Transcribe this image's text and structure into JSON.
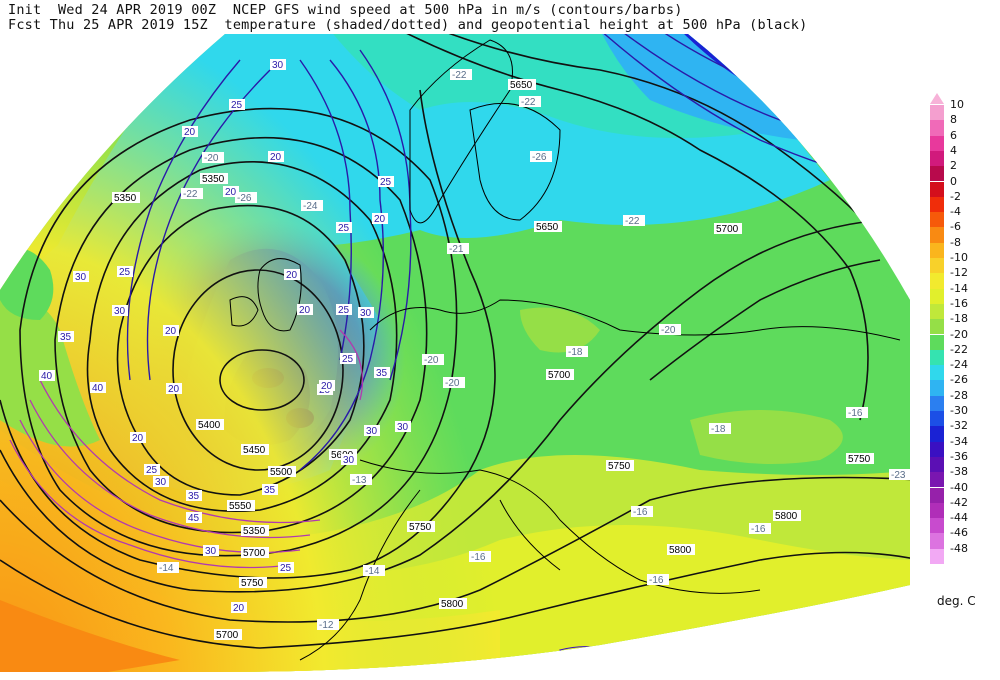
{
  "header": {
    "line1": "Init  Wed 24 APR 2019 00Z  NCEP GFS wind speed at 500 hPa in m/s (contours/barbs)",
    "line2": "Fcst Thu 25 APR 2019 15Z  temperature (shaded/dotted) and geopotential height at 500 hPa (black)"
  },
  "legend": {
    "units": "deg. C",
    "entries": [
      {
        "label": "10",
        "color": "#f49fcf"
      },
      {
        "label": "8",
        "color": "#f06ab8"
      },
      {
        "label": "6",
        "color": "#e8399c"
      },
      {
        "label": "4",
        "color": "#d11a7c"
      },
      {
        "label": "2",
        "color": "#b80a4c"
      },
      {
        "label": "0",
        "color": "#d40e1c"
      },
      {
        "label": "-2",
        "color": "#f02d0a"
      },
      {
        "label": "-4",
        "color": "#f65a0a"
      },
      {
        "label": "-6",
        "color": "#f98a12"
      },
      {
        "label": "-8",
        "color": "#fab51d"
      },
      {
        "label": "-10",
        "color": "#f8d12a"
      },
      {
        "label": "-12",
        "color": "#f2ea2e"
      },
      {
        "label": "-14",
        "color": "#e1ef2c"
      },
      {
        "label": "-16",
        "color": "#c0e83a"
      },
      {
        "label": "-18",
        "color": "#95df47"
      },
      {
        "label": "-20",
        "color": "#5edb5c"
      },
      {
        "label": "-22",
        "color": "#35e3b0"
      },
      {
        "label": "-24",
        "color": "#30d8ec"
      },
      {
        "label": "-26",
        "color": "#2fb4f2"
      },
      {
        "label": "-28",
        "color": "#2b7ff0"
      },
      {
        "label": "-30",
        "color": "#1c4fe6"
      },
      {
        "label": "-32",
        "color": "#1a22d4"
      },
      {
        "label": "-34",
        "color": "#3a10c2"
      },
      {
        "label": "-36",
        "color": "#5b0fb4"
      },
      {
        "label": "-38",
        "color": "#7a16b0"
      },
      {
        "label": "-40",
        "color": "#9621aa"
      },
      {
        "label": "-42",
        "color": "#b02eb8"
      },
      {
        "label": "-44",
        "color": "#c84bce"
      },
      {
        "label": "-46",
        "color": "#dc73e0"
      },
      {
        "label": "-48",
        "color": "#f2a9f4"
      }
    ]
  },
  "map": {
    "height_labels": [
      "5650",
      "5650",
      "5700",
      "5350",
      "5350",
      "5400",
      "5450",
      "5500",
      "5550",
      "5350",
      "5700",
      "5750",
      "5600",
      "5700",
      "5750",
      "5750",
      "5800",
      "5800",
      "5800",
      "5700",
      "5750"
    ],
    "temp_labels": [
      "-22",
      "-22",
      "-26",
      "-26",
      "-22",
      "-20",
      "-21",
      "-18",
      "-20",
      "-18",
      "-16",
      "-16",
      "-16",
      "-16",
      "-14",
      "-14",
      "-12",
      "-13",
      "-20",
      "-20",
      "-24",
      "-22",
      "-16",
      "-23"
    ],
    "wind_labels": [
      "30",
      "25",
      "20",
      "20",
      "20",
      "25",
      "20",
      "20",
      "25",
      "30",
      "20",
      "20",
      "25",
      "20",
      "20",
      "25",
      "30",
      "30",
      "35",
      "35",
      "40",
      "45",
      "30",
      "25",
      "20",
      "30",
      "30",
      "35",
      "35",
      "30",
      "40",
      "30",
      "25",
      "20",
      "25",
      "20"
    ]
  }
}
